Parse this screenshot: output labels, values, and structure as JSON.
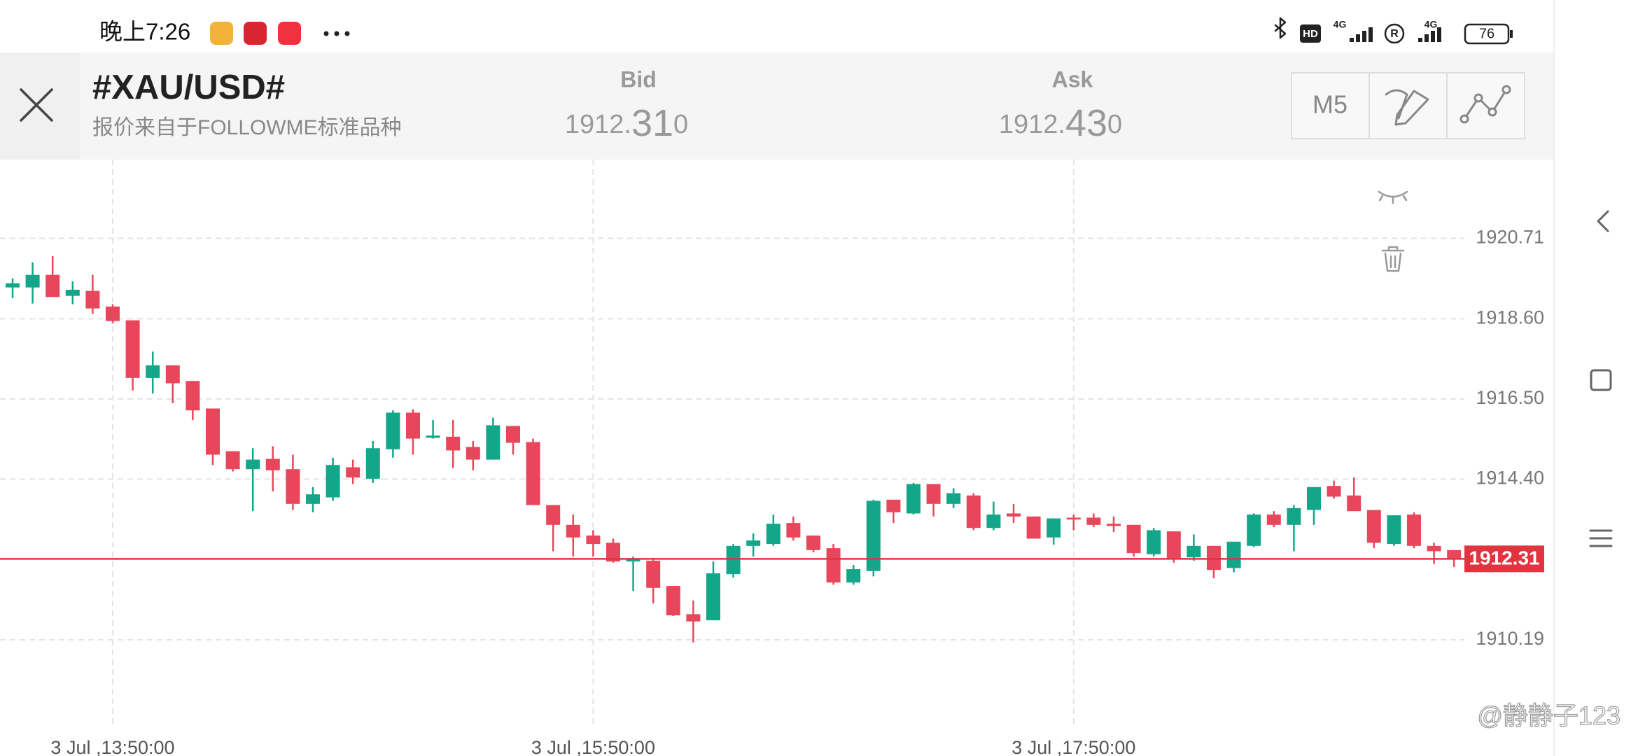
{
  "status_bar": {
    "time": "晚上7:26",
    "network": [
      "HD",
      "4G",
      "4G"
    ],
    "battery": "76"
  },
  "header": {
    "symbol": "#XAU/USD#",
    "source": "报价来自于FOLLOWME标准品种",
    "bid": {
      "label": "Bid",
      "price_parts": [
        "1912.",
        "31",
        "0"
      ]
    },
    "ask": {
      "label": "Ask",
      "price_parts": [
        "1912.",
        "43",
        "0"
      ]
    },
    "timeframe": "M5"
  },
  "chart_data": {
    "type": "candlestick",
    "categories": [
      null,
      null,
      null,
      null,
      null,
      "3 Jul ,13:50:00",
      null,
      null,
      null,
      null,
      null,
      null,
      null,
      null,
      null,
      null,
      null,
      null,
      null,
      null,
      null,
      null,
      null,
      null,
      null,
      null,
      null,
      null,
      null,
      "3 Jul ,15:50:00",
      null,
      null,
      null,
      null,
      null,
      null,
      null,
      null,
      null,
      null,
      null,
      null,
      null,
      null,
      null,
      null,
      null,
      null,
      null,
      null,
      null,
      null,
      null,
      "3 Jul ,17:50:00",
      null,
      null,
      null,
      null,
      null,
      null,
      null,
      null,
      null,
      null,
      null,
      null,
      null,
      null,
      null,
      null,
      null,
      null,
      null
    ],
    "open": [
      1919.42,
      1919.42,
      1919.75,
      1919.2,
      1919.33,
      1918.92,
      1918.56,
      1917.05,
      1917.38,
      1916.97,
      1916.25,
      1915.13,
      1914.66,
      1914.93,
      1914.66,
      1913.75,
      1913.92,
      1914.71,
      1914.41,
      1915.18,
      1916.14,
      1915.48,
      1915.51,
      1915.24,
      1914.91,
      1915.79,
      1915.37,
      1913.72,
      1913.2,
      1912.92,
      1912.73,
      1912.24,
      1912.26,
      1911.6,
      1910.86,
      1910.7,
      1911.91,
      1912.65,
      1912.7,
      1913.25,
      1912.92,
      1912.59,
      1911.69,
      1911.99,
      1913.86,
      1913.5,
      1914.27,
      1913.75,
      1913.97,
      1913.12,
      1913.5,
      1913.42,
      1912.87,
      1913.39,
      1913.39,
      1913.23,
      1913.2,
      1912.43,
      1913.03,
      1912.35,
      1912.65,
      1912.07,
      1912.65,
      1913.47,
      1913.2,
      1913.59,
      1914.22,
      1913.97,
      1913.59,
      1912.7,
      1913.47,
      1912.65,
      1912.54
    ],
    "high": [
      1919.66,
      1920.08,
      1920.24,
      1919.58,
      1919.75,
      1918.98,
      1918.56,
      1917.74,
      1917.38,
      1916.97,
      1916.25,
      1915.13,
      1915.21,
      1915.26,
      1915.04,
      1914.19,
      1914.96,
      1914.91,
      1915.4,
      1916.2,
      1916.23,
      1915.95,
      1915.95,
      1915.4,
      1916.01,
      1915.79,
      1915.46,
      1913.72,
      1913.47,
      1913.06,
      1912.84,
      1912.37,
      1912.32,
      1911.6,
      1911.22,
      1912.24,
      1912.7,
      1912.98,
      1913.47,
      1913.42,
      1912.92,
      1912.7,
      1912.15,
      1913.86,
      1913.86,
      1914.3,
      1914.27,
      1914.16,
      1914.03,
      1913.81,
      1913.75,
      1913.42,
      1913.37,
      1913.47,
      1913.5,
      1913.42,
      1913.2,
      1913.12,
      1913.03,
      1912.95,
      1912.65,
      1912.76,
      1913.5,
      1913.56,
      1913.72,
      1914.19,
      1914.36,
      1914.44,
      1913.59,
      1913.45,
      1913.53,
      1912.73,
      1912.54
    ],
    "low": [
      1919.14,
      1919.0,
      1919.17,
      1918.98,
      1918.73,
      1918.48,
      1916.72,
      1916.64,
      1916.39,
      1915.95,
      1914.77,
      1914.6,
      1913.56,
      1914.08,
      1913.59,
      1913.53,
      1913.83,
      1914.27,
      1914.3,
      1914.96,
      1915.04,
      1915.46,
      1914.69,
      1914.63,
      1914.91,
      1915.04,
      1913.72,
      1912.51,
      1912.37,
      1912.37,
      1912.21,
      1911.47,
      1911.14,
      1910.81,
      1910.12,
      1910.7,
      1911.82,
      1912.37,
      1912.65,
      1912.79,
      1912.48,
      1911.63,
      1911.63,
      1911.85,
      1913.25,
      1913.47,
      1913.42,
      1913.64,
      1913.06,
      1913.06,
      1913.25,
      1912.84,
      1912.68,
      1913.06,
      1913.14,
      1913.01,
      1912.37,
      1912.37,
      1912.21,
      1912.26,
      1911.8,
      1911.96,
      1912.62,
      1913.14,
      1912.51,
      1913.2,
      1913.89,
      1913.56,
      1912.59,
      1912.65,
      1912.59,
      1912.18,
      1912.1
    ],
    "close": [
      1919.53,
      1919.75,
      1919.17,
      1919.36,
      1918.87,
      1918.54,
      1917.05,
      1917.38,
      1916.91,
      1916.2,
      1915.04,
      1914.66,
      1914.91,
      1914.63,
      1913.75,
      1914.0,
      1914.77,
      1914.44,
      1915.21,
      1916.14,
      1915.46,
      1915.54,
      1915.15,
      1914.91,
      1915.81,
      1915.35,
      1913.72,
      1913.2,
      1912.87,
      1912.7,
      1912.24,
      1912.29,
      1911.55,
      1910.83,
      1910.67,
      1911.93,
      1912.65,
      1912.79,
      1913.23,
      1912.87,
      1912.54,
      1911.69,
      1912.04,
      1913.83,
      1913.53,
      1914.27,
      1913.75,
      1914.03,
      1913.12,
      1913.47,
      1913.42,
      1912.84,
      1913.37,
      1913.34,
      1913.2,
      1913.17,
      1912.46,
      1913.06,
      1912.29,
      1912.65,
      1912.02,
      1912.76,
      1913.47,
      1913.2,
      1913.64,
      1914.19,
      1913.94,
      1913.56,
      1912.73,
      1913.45,
      1912.65,
      1912.51,
      1912.29
    ],
    "up_color": "#14a688",
    "down_color": "#e8475b",
    "ylim": [
      1907.97,
      1922.77
    ],
    "yticks": [
      1920.71,
      {
        "value": 1918.6,
        "label": "1918.60"
      },
      {
        "value": 1916.5,
        "label": "1916.50"
      },
      {
        "value": 1914.4,
        "label": "1914.40"
      },
      1910.19
    ],
    "grid": true,
    "current_price": 1912.31,
    "current_price_color": "#e0343f"
  },
  "watermark": "@静静子123"
}
